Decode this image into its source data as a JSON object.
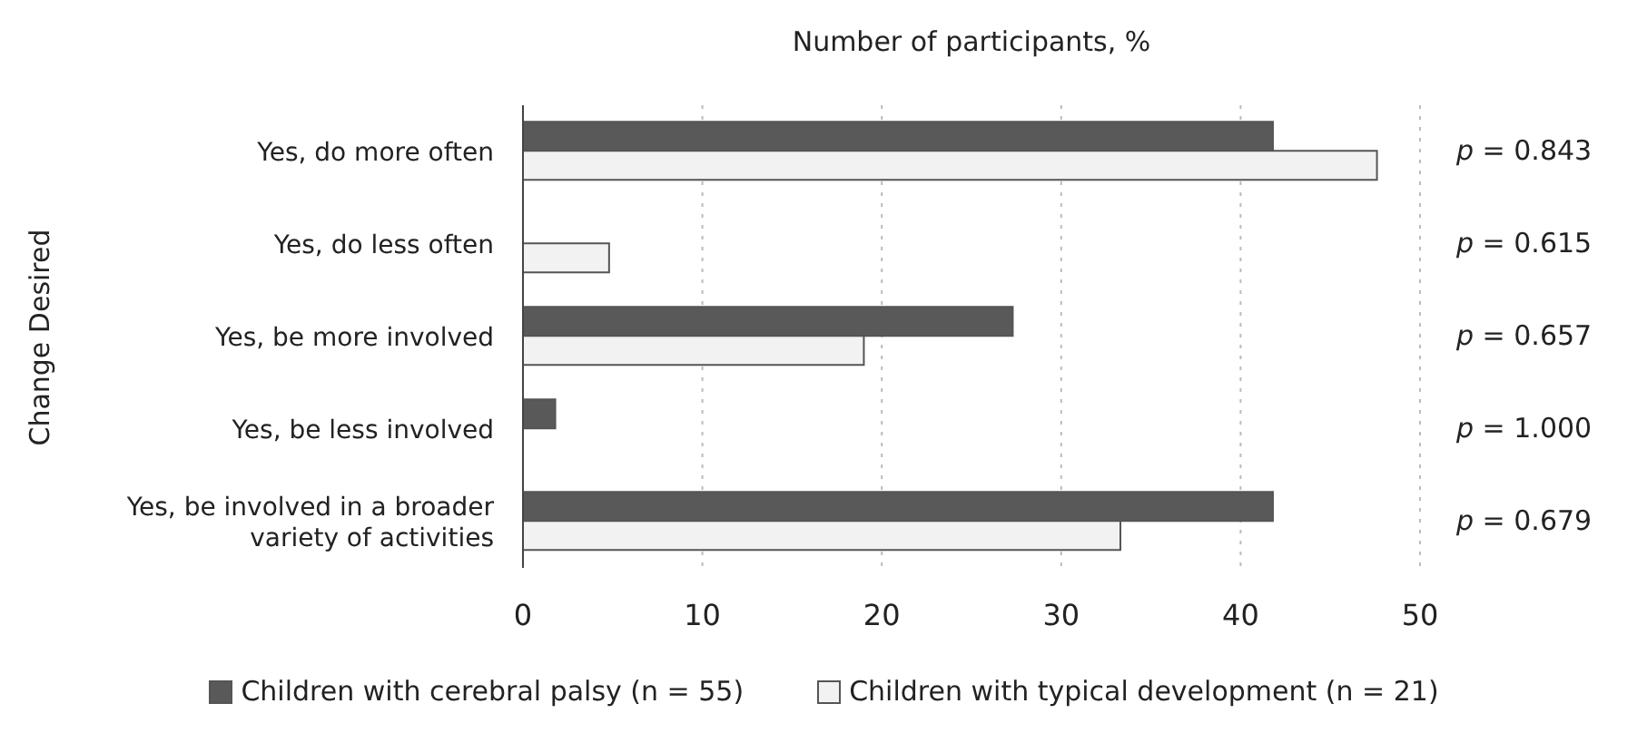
{
  "chart_data": {
    "type": "bar",
    "orientation": "horizontal",
    "title": "Number of participants, %",
    "ylabel": "Change Desired",
    "categories": [
      "Yes, do more often",
      "Yes, do less often",
      "Yes, be more involved",
      "Yes, be less involved",
      "Yes, be involved in a broader variety of activities"
    ],
    "series": [
      {
        "name": "Children with cerebral palsy (n = 55)",
        "color": "#595959",
        "values": [
          41.8,
          0,
          27.3,
          1.8,
          41.8
        ]
      },
      {
        "name": "Children with typical development (n = 21)",
        "color": "#f2f2f2",
        "values": [
          47.6,
          4.8,
          19.0,
          0,
          33.3
        ]
      }
    ],
    "xlim": [
      0,
      50
    ],
    "xticks": [
      0,
      10,
      20,
      30,
      40,
      50
    ],
    "grid": "x",
    "legend": "bottom",
    "annotations": [
      "p = 0.843",
      "p = 0.615",
      "p = 0.657",
      "p = 1.000",
      "p = 0.679"
    ]
  }
}
